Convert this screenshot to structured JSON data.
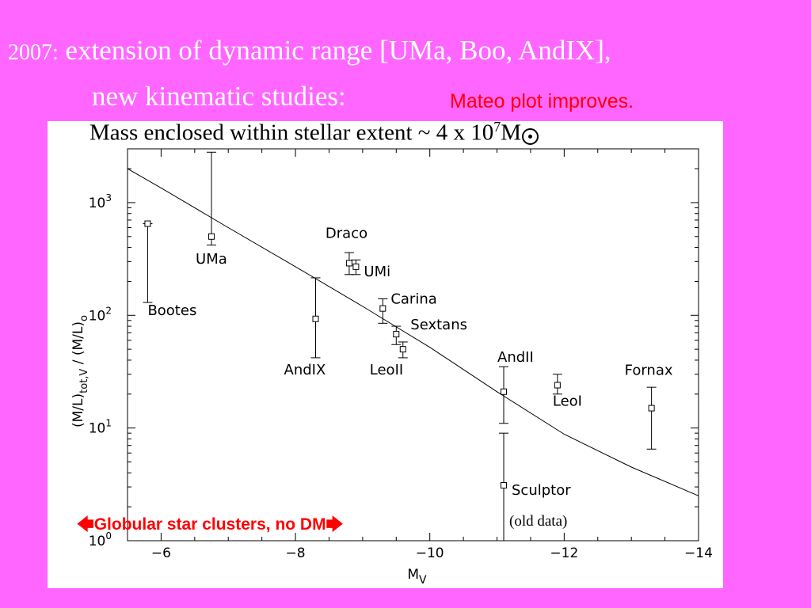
{
  "slide": {
    "title_year": "2007:",
    "title_line1": "extension of dynamic range [UMa, Boo, AndIX],",
    "title_line2": "new kinematic studies:",
    "note": "Mateo plot improves.",
    "mass_text": "Mass enclosed within stellar extent ~ 4 x 10",
    "mass_exp": "7",
    "mass_unit": "M",
    "globular_note": "Globular star clusters, no DM",
    "old_data_note": "(old data)",
    "colors": {
      "background": "#ff66ff",
      "title": "#ffffff",
      "accent": "#ff0000"
    }
  },
  "chart_data": {
    "type": "scatter",
    "xlabel": "M_V",
    "ylabel": "(M/L)_tot,V / (M/L)_o",
    "xlim": [
      -5.5,
      -14
    ],
    "ylim": [
      1,
      3000
    ],
    "yscale": "log",
    "xticks": [
      -6,
      -8,
      -10,
      -12,
      -14
    ],
    "xtick_labels": [
      "−6",
      "−8",
      "−10",
      "−12",
      "−14"
    ],
    "yticks": [
      1,
      10,
      100,
      1000
    ],
    "ytick_labels": [
      "10^0",
      "10^1",
      "10^2",
      "10^3"
    ],
    "points": [
      {
        "name": "Bootes",
        "x": -5.8,
        "y": 650,
        "ylo": 130,
        "yhi": 650
      },
      {
        "name": "UMa",
        "x": -6.75,
        "y": 500,
        "ylo": 420,
        "yhi": 2800
      },
      {
        "name": "Draco",
        "x": -8.8,
        "y": 290,
        "ylo": 230,
        "yhi": 360
      },
      {
        "name": "UMi",
        "x": -8.9,
        "y": 270,
        "ylo": 230,
        "yhi": 310
      },
      {
        "name": "Carina",
        "x": -9.3,
        "y": 115,
        "ylo": 85,
        "yhi": 140
      },
      {
        "name": "Sextans",
        "x": -9.5,
        "y": 68,
        "ylo": 55,
        "yhi": 80
      },
      {
        "name": "AndIX",
        "x": -8.3,
        "y": 93,
        "ylo": 42,
        "yhi": 215
      },
      {
        "name": "LeoII",
        "x": -9.6,
        "y": 50,
        "ylo": 42,
        "yhi": 58
      },
      {
        "name": "AndII",
        "x": -11.1,
        "y": 21,
        "ylo": 11,
        "yhi": 35
      },
      {
        "name": "LeoI",
        "x": -11.9,
        "y": 24,
        "ylo": 20,
        "yhi": 30
      },
      {
        "name": "Fornax",
        "x": -13.3,
        "y": 15,
        "ylo": 6.5,
        "yhi": 23
      },
      {
        "name": "Sculptor",
        "x": -11.1,
        "y": 3.1,
        "ylo": 1,
        "yhi": 9
      }
    ],
    "curve": {
      "x": [
        -5.5,
        -6,
        -7,
        -8,
        -9,
        -10,
        -11,
        -12,
        -13,
        -14
      ],
      "y": [
        2000,
        1350,
        600,
        270,
        120,
        52,
        21,
        8.8,
        4.5,
        2.5
      ]
    }
  }
}
